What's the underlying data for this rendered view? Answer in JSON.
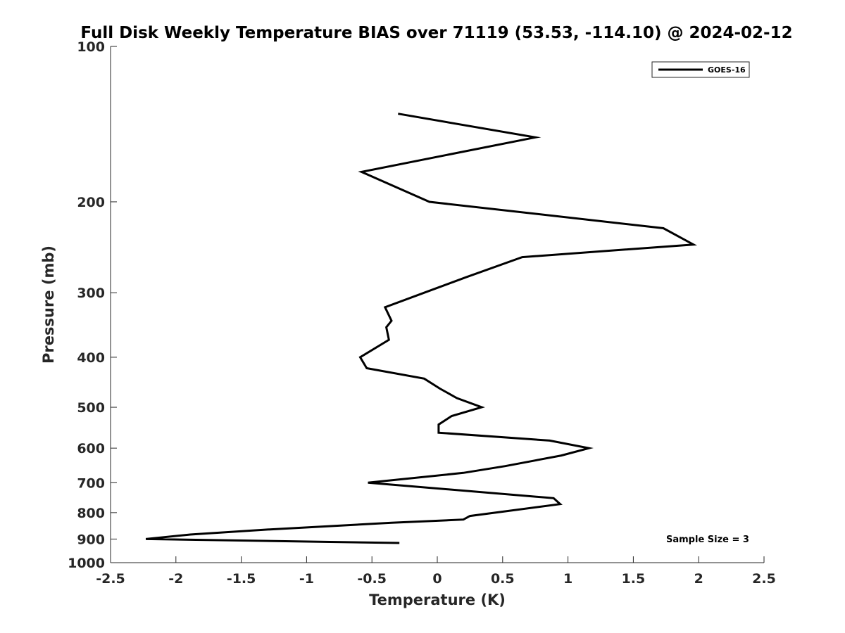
{
  "chart_data": {
    "type": "line",
    "title": "Full Disk Weekly Temperature BIAS over 71119 (53.53, -114.10) @ 2024-02-12",
    "xlabel": "Temperature (K)",
    "ylabel": "Pressure (mb)",
    "xlim": [
      -2.5,
      2.5
    ],
    "ylim": [
      100,
      1000
    ],
    "y_scale": "log",
    "y_reversed": true,
    "x_ticks": [
      -2.5,
      -2,
      -1.5,
      -1,
      -0.5,
      0,
      0.5,
      1,
      1.5,
      2,
      2.5
    ],
    "x_tick_labels": [
      "-2.5",
      "-2",
      "-1.5",
      "-1",
      "-0.5",
      "0",
      "0.5",
      "1",
      "1.5",
      "2",
      "2.5"
    ],
    "y_ticks": [
      100,
      200,
      300,
      400,
      500,
      600,
      700,
      800,
      900,
      1000
    ],
    "y_tick_labels": [
      "100",
      "200",
      "300",
      "400",
      "500",
      "600",
      "700",
      "800",
      "900",
      "1000"
    ],
    "grid": false,
    "legend_position": "top-right",
    "annotation": "Sample Size = 3",
    "series": [
      {
        "name": "GOES-16",
        "color": "#000000",
        "points": [
          [
            -0.3,
            135
          ],
          [
            0.75,
            150
          ],
          [
            -0.58,
            175
          ],
          [
            -0.06,
            200
          ],
          [
            1.73,
            225
          ],
          [
            1.96,
            242
          ],
          [
            0.65,
            256
          ],
          [
            0.22,
            280
          ],
          [
            -0.1,
            300
          ],
          [
            -0.4,
            320
          ],
          [
            -0.35,
            340
          ],
          [
            -0.39,
            350
          ],
          [
            -0.37,
            370
          ],
          [
            -0.59,
            400
          ],
          [
            -0.54,
            420
          ],
          [
            -0.1,
            440
          ],
          [
            0.02,
            460
          ],
          [
            0.15,
            480
          ],
          [
            0.34,
            500
          ],
          [
            0.11,
            520
          ],
          [
            0.01,
            540
          ],
          [
            0.01,
            560
          ],
          [
            0.86,
            580
          ],
          [
            1.16,
            600
          ],
          [
            0.95,
            620
          ],
          [
            0.52,
            650
          ],
          [
            0.2,
            670
          ],
          [
            -0.53,
            700
          ],
          [
            0.89,
            750
          ],
          [
            0.94,
            770
          ],
          [
            0.25,
            812
          ],
          [
            0.2,
            825
          ],
          [
            -0.35,
            837
          ],
          [
            -1.28,
            862
          ],
          [
            -1.89,
            882
          ],
          [
            -2.23,
            900
          ],
          [
            -0.29,
            916
          ]
        ]
      }
    ]
  }
}
